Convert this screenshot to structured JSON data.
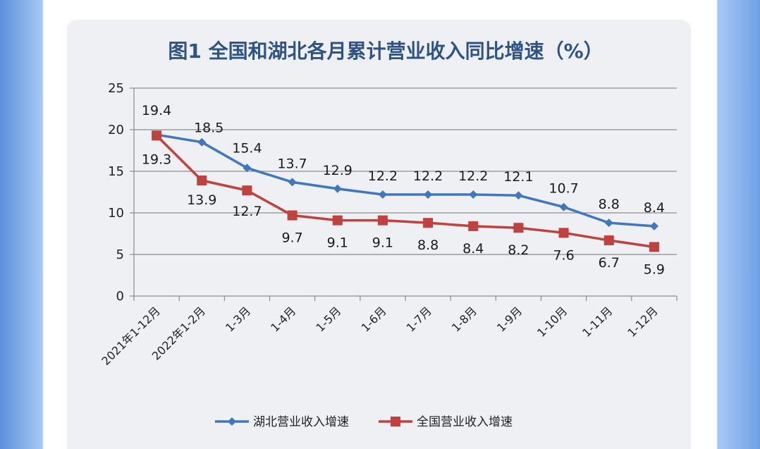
{
  "chart_data": {
    "type": "line",
    "title": "图1  全国和湖北各月累计营业收入同比增速（%）",
    "categories": [
      "2021年1-12月",
      "2022年1-2月",
      "1-3月",
      "1-4月",
      "1-5月",
      "1-6月",
      "1-7月",
      "1-8月",
      "1-9月",
      "1-10月",
      "1-11月",
      "1-12月"
    ],
    "series": [
      {
        "name": "湖北营业收入增速",
        "color": "#3f78c0",
        "marker": "diamond",
        "values": [
          19.4,
          18.5,
          15.4,
          13.7,
          12.9,
          12.2,
          12.2,
          12.2,
          12.1,
          10.7,
          8.8,
          8.4
        ]
      },
      {
        "name": "全国营业收入增速",
        "color": "#c0413d",
        "marker": "square",
        "values": [
          19.3,
          13.9,
          12.7,
          9.7,
          9.1,
          9.1,
          8.8,
          8.4,
          8.2,
          7.6,
          6.7,
          5.9
        ]
      }
    ],
    "ylim": [
      0,
      25
    ],
    "yticks": [
      0,
      5,
      10,
      15,
      20,
      25
    ],
    "grid": true,
    "legend": "bottom"
  }
}
